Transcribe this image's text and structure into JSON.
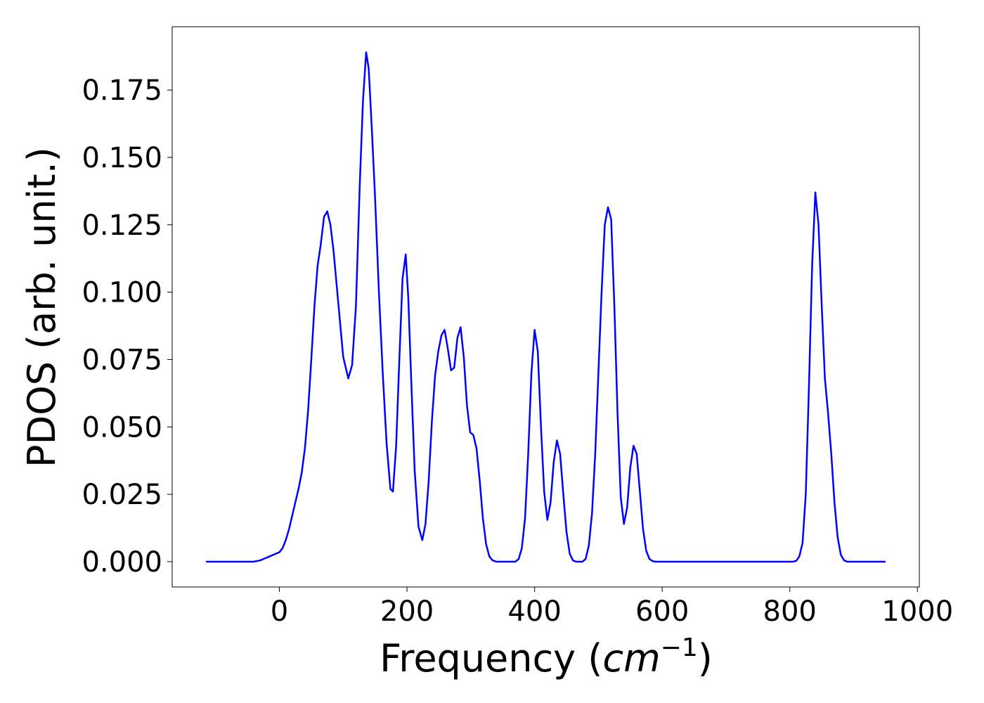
{
  "chart_data": {
    "type": "line",
    "xlabel": [
      "Frequency (",
      "cm",
      "−1",
      ")"
    ],
    "ylabel": "PDOS (arb. unit.)",
    "color": "#0000ff",
    "xlim": [
      -168,
      1003
    ],
    "ylim": [
      -0.0094,
      0.1985
    ],
    "xticks": [
      0,
      200,
      400,
      600,
      800,
      1000
    ],
    "yticks": [
      {
        "value": 0,
        "label": "0.000"
      },
      {
        "value": 0.025,
        "label": "0.025"
      },
      {
        "value": 0.05,
        "label": "0.050"
      },
      {
        "value": 0.075,
        "label": "0.075"
      },
      {
        "value": 0.1,
        "label": "0.100"
      },
      {
        "value": 0.125,
        "label": "0.125"
      },
      {
        "value": 0.15,
        "label": "0.150"
      },
      {
        "value": 0.175,
        "label": "0.175"
      }
    ],
    "x": [
      -115,
      -40,
      -30,
      -20,
      -10,
      0,
      5,
      10,
      15,
      20,
      25,
      30,
      35,
      40,
      45,
      50,
      55,
      60,
      65,
      70,
      75,
      80,
      85,
      90,
      95,
      100,
      108,
      114,
      120,
      126,
      131,
      136,
      140,
      145,
      150,
      156,
      162,
      168,
      174,
      178,
      183,
      188,
      193,
      198,
      202,
      207,
      212,
      218,
      224,
      229,
      234,
      239,
      244,
      249,
      254,
      259,
      264,
      269,
      274,
      279,
      284,
      289,
      294,
      299,
      304,
      309,
      314,
      319,
      324,
      329,
      334,
      340,
      370,
      375,
      380,
      385,
      390,
      395,
      400,
      405,
      410,
      415,
      420,
      425,
      430,
      435,
      440,
      445,
      450,
      455,
      460,
      465,
      475,
      480,
      485,
      490,
      495,
      500,
      505,
      510,
      515,
      520,
      525,
      530,
      535,
      540,
      545,
      550,
      555,
      560,
      565,
      570,
      575,
      580,
      585,
      590,
      805,
      810,
      815,
      820,
      825,
      830,
      835,
      840,
      845,
      850,
      855,
      860,
      865,
      870,
      875,
      880,
      885,
      890,
      950
    ],
    "values": [
      0,
      0,
      0.0005,
      0.0015,
      0.0025,
      0.0035,
      0.005,
      0.008,
      0.012,
      0.017,
      0.022,
      0.027,
      0.033,
      0.042,
      0.056,
      0.075,
      0.095,
      0.11,
      0.118,
      0.128,
      0.13,
      0.125,
      0.115,
      0.102,
      0.089,
      0.076,
      0.068,
      0.073,
      0.095,
      0.14,
      0.171,
      0.189,
      0.183,
      0.16,
      0.135,
      0.1,
      0.07,
      0.044,
      0.027,
      0.026,
      0.043,
      0.075,
      0.105,
      0.114,
      0.098,
      0.065,
      0.034,
      0.013,
      0.008,
      0.014,
      0.03,
      0.052,
      0.069,
      0.078,
      0.084,
      0.086,
      0.079,
      0.071,
      0.072,
      0.083,
      0.087,
      0.076,
      0.058,
      0.048,
      0.047,
      0.042,
      0.03,
      0.016,
      0.0065,
      0.002,
      0.0005,
      0,
      0,
      0.001,
      0.005,
      0.016,
      0.04,
      0.07,
      0.086,
      0.078,
      0.05,
      0.026,
      0.0155,
      0.022,
      0.037,
      0.045,
      0.04,
      0.025,
      0.011,
      0.003,
      0.0005,
      0,
      0,
      0.001,
      0.006,
      0.018,
      0.04,
      0.07,
      0.1,
      0.125,
      0.1315,
      0.127,
      0.095,
      0.055,
      0.024,
      0.014,
      0.02,
      0.035,
      0.043,
      0.04,
      0.026,
      0.012,
      0.004,
      0.001,
      0.0002,
      0,
      0,
      0.0003,
      0.002,
      0.007,
      0.025,
      0.065,
      0.11,
      0.137,
      0.125,
      0.095,
      0.068,
      0.055,
      0.04,
      0.022,
      0.009,
      0.0025,
      0.0005,
      0,
      0
    ]
  }
}
